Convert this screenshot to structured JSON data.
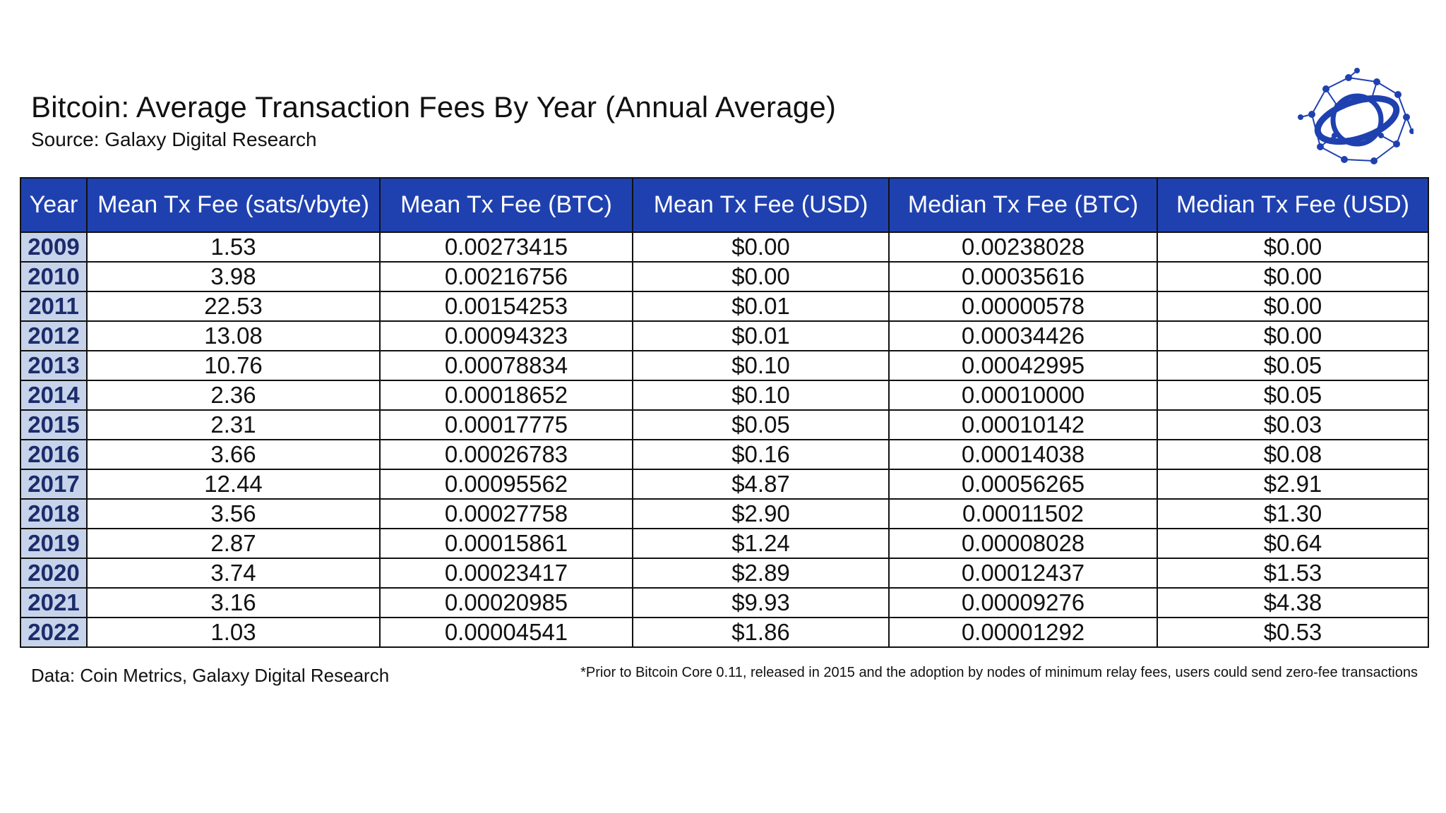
{
  "header": {
    "title": "Bitcoin: Average Transaction Fees By Year (Annual Average)",
    "subtitle": "Source: Galaxy Digital Research"
  },
  "logo": {
    "icon": "galaxy-network-logo-icon",
    "color": "#1f41b0"
  },
  "colors": {
    "header_bg": "#1f41b0",
    "year_bg": "#c6d3ea",
    "header_text": "#ffffff"
  },
  "chart_data": {
    "type": "table",
    "columns": [
      "Year",
      "Mean Tx Fee (sats/vbyte)",
      "Mean Tx Fee (BTC)",
      "Mean Tx Fee (USD)",
      "Median Tx Fee (BTC)",
      "Median Tx Fee (USD)"
    ],
    "rows": [
      [
        "2009",
        "1.53",
        "0.00273415",
        "$0.00",
        "0.00238028",
        "$0.00"
      ],
      [
        "2010",
        "3.98",
        "0.00216756",
        "$0.00",
        "0.00035616",
        "$0.00"
      ],
      [
        "2011",
        "22.53",
        "0.00154253",
        "$0.01",
        "0.00000578",
        "$0.00"
      ],
      [
        "2012",
        "13.08",
        "0.00094323",
        "$0.01",
        "0.00034426",
        "$0.00"
      ],
      [
        "2013",
        "10.76",
        "0.00078834",
        "$0.10",
        "0.00042995",
        "$0.05"
      ],
      [
        "2014",
        "2.36",
        "0.00018652",
        "$0.10",
        "0.00010000",
        "$0.05"
      ],
      [
        "2015",
        "2.31",
        "0.00017775",
        "$0.05",
        "0.00010142",
        "$0.03"
      ],
      [
        "2016",
        "3.66",
        "0.00026783",
        "$0.16",
        "0.00014038",
        "$0.08"
      ],
      [
        "2017",
        "12.44",
        "0.00095562",
        "$4.87",
        "0.00056265",
        "$2.91"
      ],
      [
        "2018",
        "3.56",
        "0.00027758",
        "$2.90",
        "0.00011502",
        "$1.30"
      ],
      [
        "2019",
        "2.87",
        "0.00015861",
        "$1.24",
        "0.00008028",
        "$0.64"
      ],
      [
        "2020",
        "3.74",
        "0.00023417",
        "$2.89",
        "0.00012437",
        "$1.53"
      ],
      [
        "2021",
        "3.16",
        "0.00020985",
        "$9.93",
        "0.00009276",
        "$4.38"
      ],
      [
        "2022",
        "1.03",
        "0.00004541",
        "$1.86",
        "0.00001292",
        "$0.53"
      ]
    ]
  },
  "footer": {
    "data_source": "Data: Coin Metrics, Galaxy Digital Research",
    "note": "*Prior to Bitcoin Core 0.11, released in 2015 and the adoption by nodes of minimum relay fees, users could send zero-fee transactions"
  }
}
